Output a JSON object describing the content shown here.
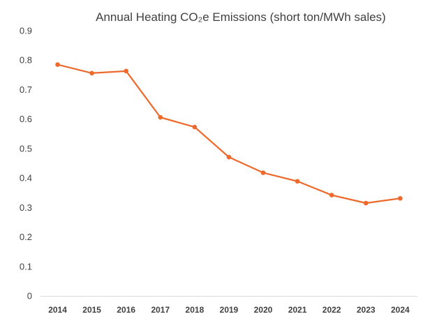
{
  "chart_data": {
    "type": "line",
    "title": "Annual Heating CO₂e  Emissions (short ton/MWh sales)",
    "xlabel": "",
    "ylabel": "",
    "categories": [
      "2014",
      "2015",
      "2016",
      "2017",
      "2018",
      "2019",
      "2020",
      "2021",
      "2022",
      "2023",
      "2024"
    ],
    "series": [
      {
        "values": [
          0.785,
          0.756,
          0.763,
          0.606,
          0.573,
          0.471,
          0.418,
          0.389,
          0.342,
          0.315,
          0.331
        ],
        "color": "#ED6A2C"
      }
    ],
    "ylim": [
      0,
      0.9
    ],
    "yticks": [
      "0",
      "0.1",
      "0.2",
      "0.3",
      "0.4",
      "0.5",
      "0.6",
      "0.7",
      "0.8",
      "0.9"
    ],
    "grid": false,
    "legend": "none",
    "axis_color": "#d9d9d9",
    "text_color": "#404040"
  }
}
